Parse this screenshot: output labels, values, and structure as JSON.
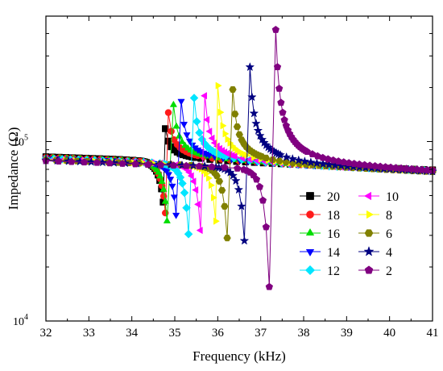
{
  "chart_data": {
    "type": "line",
    "xlabel": "Frequency (kHz)",
    "ylabel": "Impedance (Ω)",
    "xlim": [
      32,
      41
    ],
    "ylim": [
      10000,
      500000
    ],
    "yscale": "log",
    "x_ticks": [
      "32",
      "33",
      "34",
      "35",
      "36",
      "37",
      "38",
      "39",
      "40",
      "41"
    ],
    "y_ticks": [
      {
        "value": 10000,
        "base": "10",
        "exp": "4"
      },
      {
        "value": 100000,
        "base": "10",
        "exp": "5"
      }
    ],
    "legend_position": "bottom-right",
    "legend_columns": 2,
    "baseline_low_x": 32,
    "baseline_low_y": 80000,
    "baseline_high_x": 41,
    "baseline_high_y": 67000,
    "series": [
      {
        "name": "20",
        "color": "#000000",
        "marker": "square",
        "peak_x": 34.78,
        "peak_y": 118000,
        "valley_x": 34.73,
        "valley_y": 46000
      },
      {
        "name": "18",
        "color": "#ff1a1a",
        "marker": "circle",
        "peak_x": 34.85,
        "peak_y": 145000,
        "valley_x": 34.78,
        "valley_y": 40000
      },
      {
        "name": "16",
        "color": "#00dd00",
        "marker": "triangle-up",
        "peak_x": 34.97,
        "peak_y": 160000,
        "valley_x": 34.82,
        "valley_y": 36000
      },
      {
        "name": "14",
        "color": "#0000ff",
        "marker": "triangle-down",
        "peak_x": 35.15,
        "peak_y": 168000,
        "valley_x": 35.03,
        "valley_y": 39000
      },
      {
        "name": "12",
        "color": "#00e5ff",
        "marker": "diamond",
        "peak_x": 35.45,
        "peak_y": 175000,
        "valley_x": 35.32,
        "valley_y": 30500
      },
      {
        "name": "10",
        "color": "#ff00ff",
        "marker": "triangle-left",
        "peak_x": 35.7,
        "peak_y": 180000,
        "valley_x": 35.6,
        "valley_y": 32000
      },
      {
        "name": "8",
        "color": "#ffff00",
        "marker": "triangle-right",
        "peak_x": 36.0,
        "peak_y": 205000,
        "valley_x": 35.95,
        "valley_y": 36000
      },
      {
        "name": "6",
        "color": "#808000",
        "marker": "hexagon",
        "peak_x": 36.35,
        "peak_y": 195000,
        "valley_x": 36.22,
        "valley_y": 29000
      },
      {
        "name": "4",
        "color": "#000080",
        "marker": "star",
        "peak_x": 36.75,
        "peak_y": 260000,
        "valley_x": 36.62,
        "valley_y": 28000
      },
      {
        "name": "2",
        "color": "#800080",
        "marker": "pentagon",
        "peak_x": 37.35,
        "peak_y": 420000,
        "valley_x": 37.2,
        "valley_y": 15500
      }
    ]
  }
}
